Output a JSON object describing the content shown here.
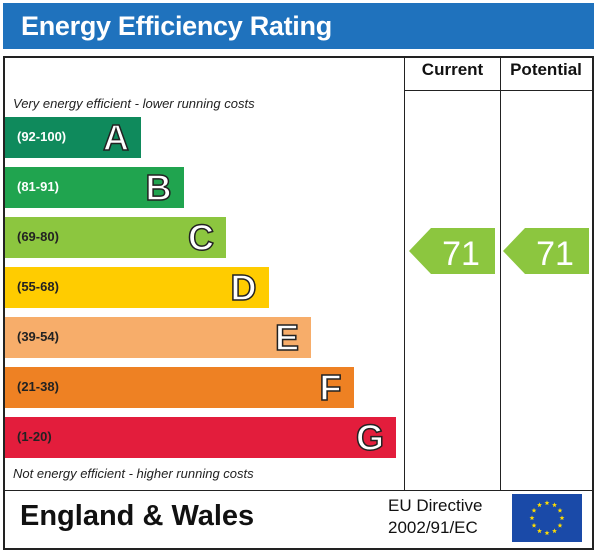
{
  "title": "Energy Efficiency Rating",
  "columns": {
    "current": "Current",
    "potential": "Potential"
  },
  "top_note": "Very energy efficient - lower running costs",
  "bottom_note": "Not energy efficient - higher running costs",
  "footer": {
    "region": "England & Wales",
    "directive_line1": "EU Directive",
    "directive_line2": "2002/91/EC"
  },
  "colors": {
    "header": "#1f72bd",
    "rating_arrow": "#8cc63f"
  },
  "chart_data": {
    "type": "bar",
    "categories": [
      "A",
      "B",
      "C",
      "D",
      "E",
      "F",
      "G"
    ],
    "ranges": [
      "(92-100)",
      "(81-91)",
      "(69-80)",
      "(55-68)",
      "(39-54)",
      "(21-38)",
      "(1-20)"
    ],
    "band_colors": [
      "#0f8a5c",
      "#20a44f",
      "#8cc63f",
      "#ffcc00",
      "#f7ad6a",
      "#ee8123",
      "#e31d3c"
    ],
    "range_text_colors": [
      "#ffffff",
      "#ffffff",
      "#222222",
      "#222222",
      "#222222",
      "#222222",
      "#222222"
    ],
    "current": 71,
    "potential": 71,
    "current_label": "71",
    "potential_label": "71"
  }
}
